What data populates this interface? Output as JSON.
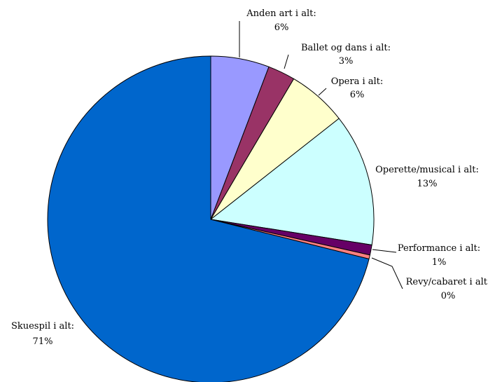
{
  "chart_data": {
    "type": "pie",
    "title": "",
    "slices": [
      {
        "label": "Anden art i alt:",
        "value_text": "6%",
        "value": 5.8,
        "color": "#9999ff"
      },
      {
        "label": "Ballet og dans i alt:",
        "value_text": "3%",
        "value": 2.7,
        "color": "#993366"
      },
      {
        "label": "Opera i alt:",
        "value_text": "6%",
        "value": 5.9,
        "color": "#ffffcc"
      },
      {
        "label": "Operette/musical i alt:",
        "value_text": "13%",
        "value": 13.1,
        "color": "#ccffff"
      },
      {
        "label": "Performance i alt:",
        "value_text": "1%",
        "value": 1.0,
        "color": "#660066"
      },
      {
        "label": "Revy/cabaret i alt:",
        "value_text": "0%",
        "value": 0.4,
        "color": "#ff8080"
      },
      {
        "label": "Skuespil i alt:",
        "value_text": "71%",
        "value": 71.1,
        "color": "#0066cc"
      }
    ],
    "start_angle_deg": 0,
    "direction": "clockwise",
    "legend": "none"
  }
}
